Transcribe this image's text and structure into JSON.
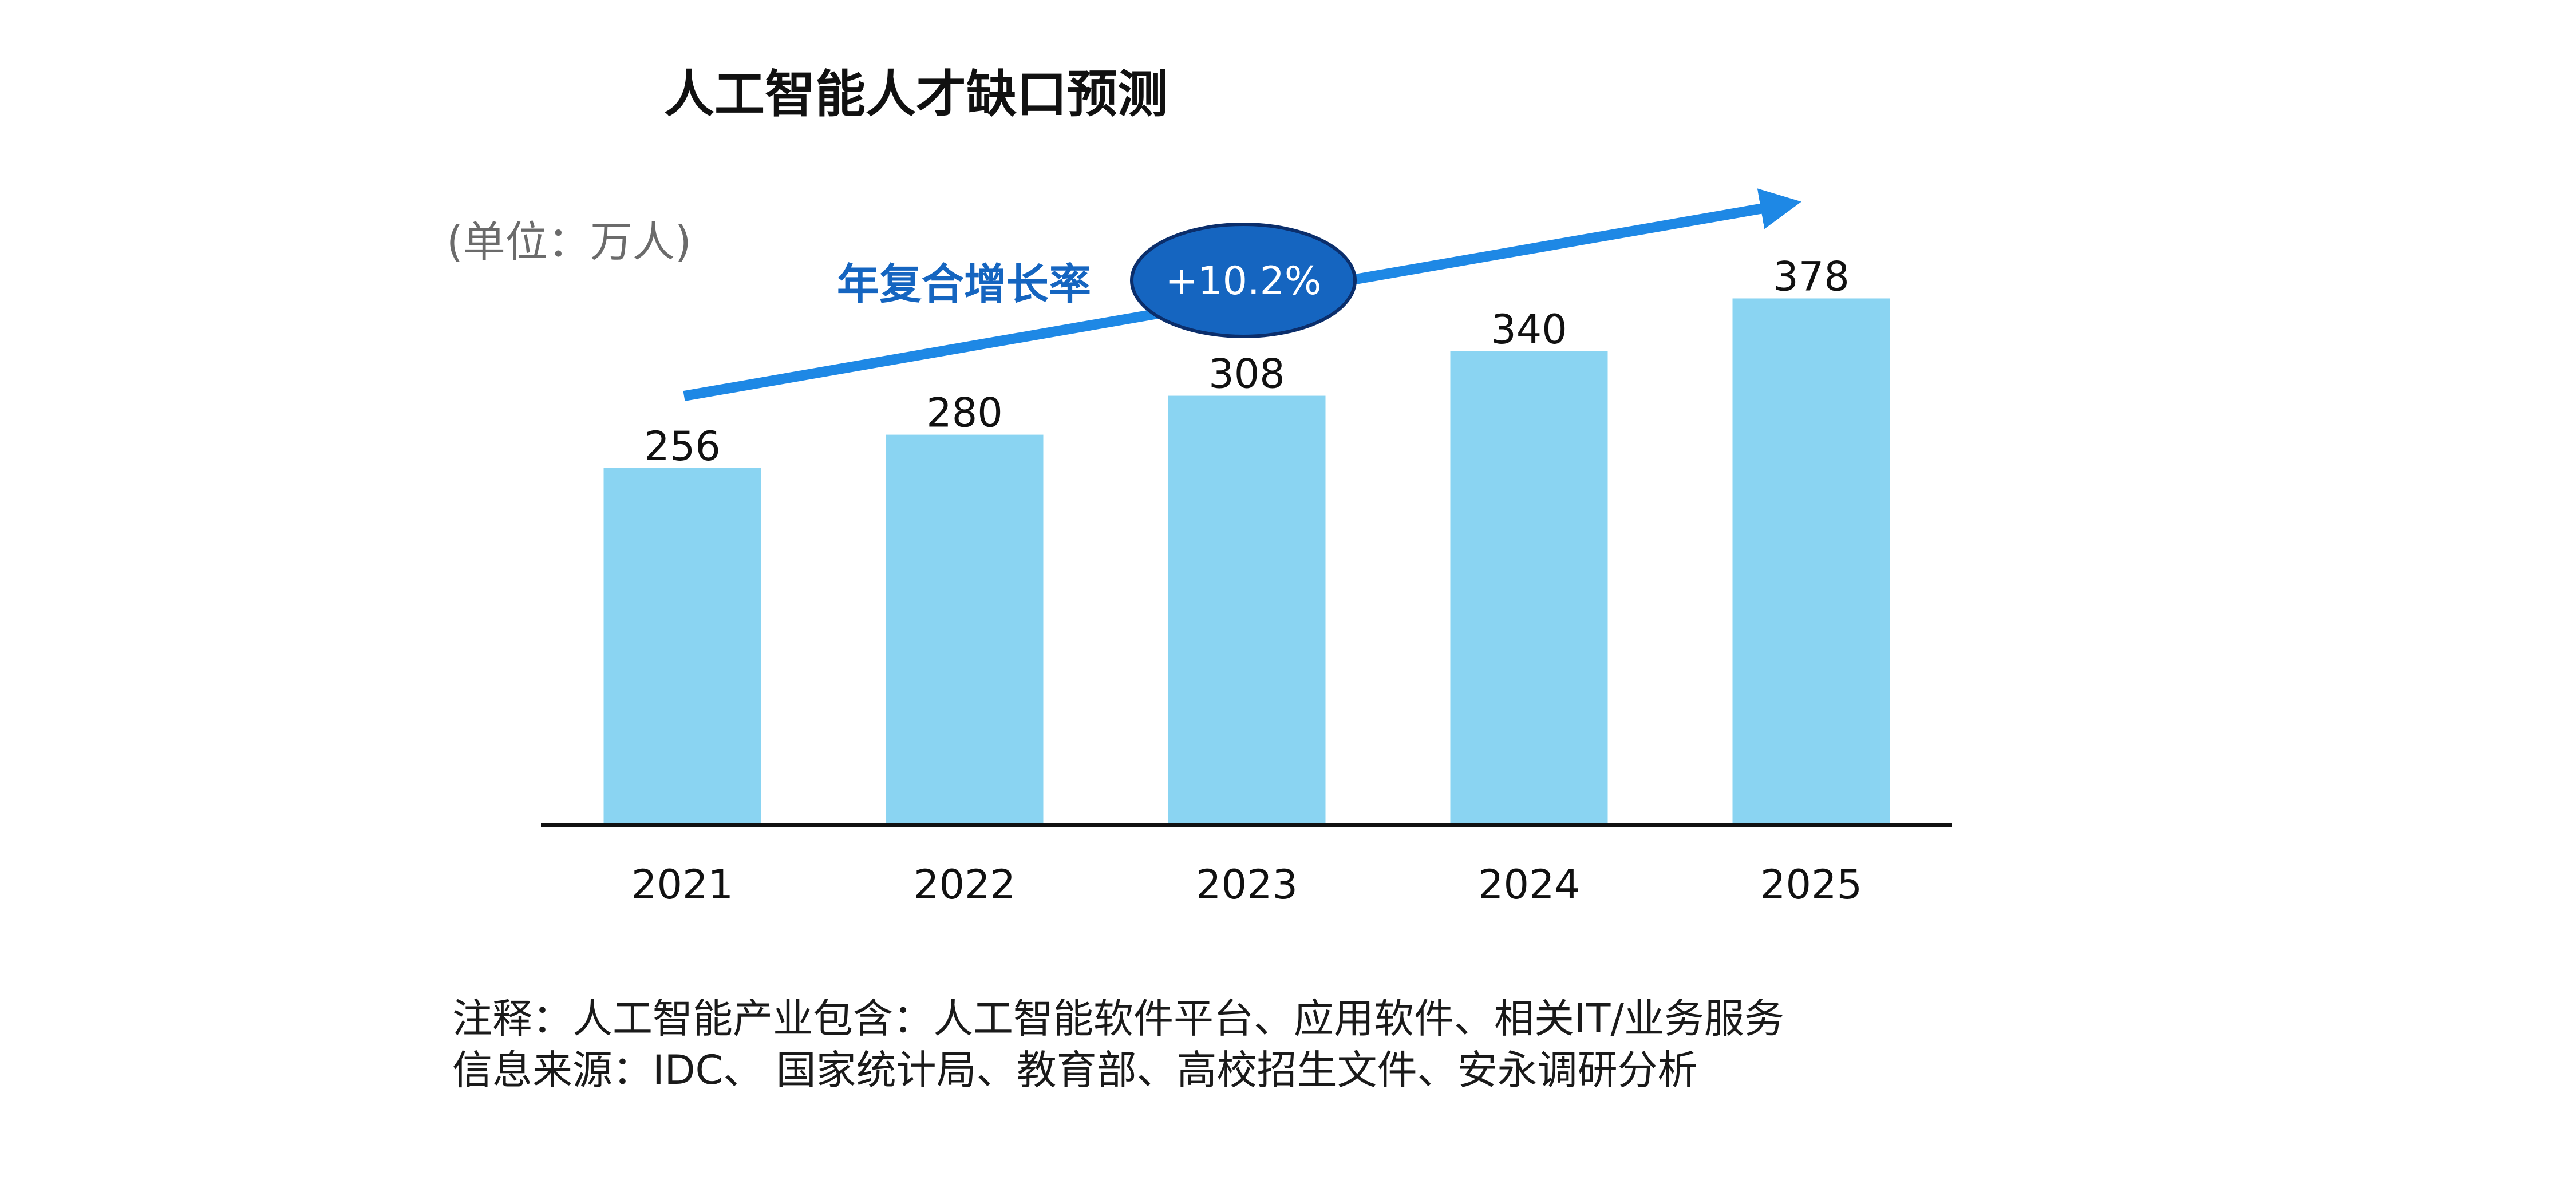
{
  "chart_data": {
    "type": "bar",
    "title": "人工智能人才缺口预测",
    "unit_label": "(单位：万人)",
    "categories": [
      "2021",
      "2022",
      "2023",
      "2024",
      "2025"
    ],
    "values": [
      256,
      280,
      308,
      340,
      378
    ],
    "data_labels": [
      "256",
      "280",
      "308",
      "340",
      "378"
    ],
    "xlabel": "",
    "ylabel": "",
    "ylim": [
      0,
      378
    ],
    "grid": false,
    "legend": "none",
    "bar_color": "#8AD4F2",
    "annotation": {
      "label": "年复合增长率",
      "badge": "+10.2%",
      "arrow_color": "#1E88E5",
      "badge_color": "#1565C0",
      "label_color": "#1565C0"
    }
  },
  "notes": {
    "line1": "注释：人工智能产业包含：人工智能软件平台、应用软件、相关IT/业务服务",
    "line2": "信息来源：IDC、 国家统计局、教育部、高校招生文件、安永调研分析"
  }
}
